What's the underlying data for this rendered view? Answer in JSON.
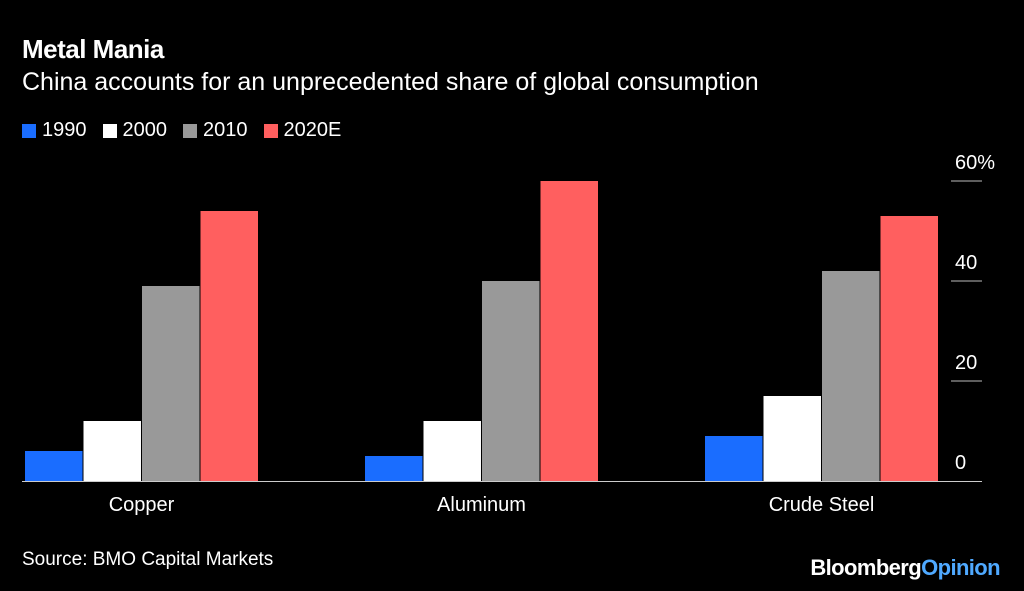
{
  "header": {
    "title": "Metal Mania",
    "subtitle": "China accounts for an unprecedented share of global consumption"
  },
  "footer": {
    "source": "Source: BMO Capital Markets",
    "brand_part1": "Bloomberg",
    "brand_part2": "Opinion"
  },
  "colors": {
    "background": "#000000",
    "text": "#ffffff",
    "series_1990": "#1a6dff",
    "series_2000": "#ffffff",
    "series_2010": "#999999",
    "series_2020E": "#ff5f5f",
    "brand_accent": "#4fa9ff"
  },
  "chart_data": {
    "type": "bar",
    "categories": [
      "Copper",
      "Aluminum",
      "Crude Steel"
    ],
    "series": [
      {
        "name": "1990",
        "color": "#1a6dff",
        "values": [
          6,
          5,
          9
        ]
      },
      {
        "name": "2000",
        "color": "#ffffff",
        "values": [
          12,
          12,
          17
        ]
      },
      {
        "name": "2010",
        "color": "#999999",
        "values": [
          39,
          40,
          42
        ]
      },
      {
        "name": "2020E",
        "color": "#ff5f5f",
        "values": [
          54,
          60,
          53
        ]
      }
    ],
    "yticks": [
      {
        "value": 0,
        "label": "0"
      },
      {
        "value": 20,
        "label": "20"
      },
      {
        "value": 40,
        "label": "40"
      },
      {
        "value": 60,
        "label": "60%"
      }
    ],
    "ylim": [
      0,
      60
    ],
    "y_axis_side": "right",
    "legend_position": "top-left",
    "grid": false
  }
}
